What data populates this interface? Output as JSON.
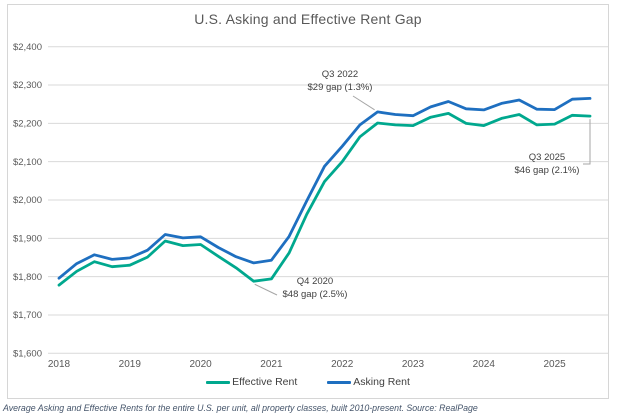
{
  "title": "U.S. Asking and Effective Rent Gap",
  "footnote": "Average Asking and Effective Rents for the entire U.S. per unit, all property classes, built 2010-present. Source: RealPage",
  "colors": {
    "effective_rent": "#00a88e",
    "asking_rent": "#1e6fc0",
    "gridline": "#d9d9d9",
    "axis_text": "#595959",
    "annotation_text": "#404040",
    "leader_line": "#a6a6a6"
  },
  "chart_data": {
    "type": "line",
    "title": "U.S. Asking and Effective Rent Gap",
    "categories": [
      "Q1 2018",
      "Q2 2018",
      "Q3 2018",
      "Q4 2018",
      "Q1 2019",
      "Q2 2019",
      "Q3 2019",
      "Q4 2019",
      "Q1 2020",
      "Q2 2020",
      "Q3 2020",
      "Q4 2020",
      "Q1 2021",
      "Q2 2021",
      "Q3 2021",
      "Q4 2021",
      "Q1 2022",
      "Q2 2022",
      "Q3 2022",
      "Q4 2022",
      "Q1 2023",
      "Q2 2023",
      "Q3 2023",
      "Q4 2023",
      "Q1 2024",
      "Q2 2024",
      "Q3 2024",
      "Q4 2024",
      "Q1 2025",
      "Q2 2025",
      "Q3 2025"
    ],
    "series": [
      {
        "name": "Effective Rent",
        "color": "#00a88e",
        "values": [
          1778,
          1814,
          1839,
          1826,
          1830,
          1851,
          1893,
          1881,
          1884,
          1853,
          1823,
          1788,
          1794,
          1862,
          1963,
          2048,
          2100,
          2165,
          2201,
          2196,
          2194,
          2216,
          2226,
          2200,
          2194,
          2213,
          2223,
          2196,
          2198,
          2221,
          2219
        ]
      },
      {
        "name": "Asking Rent",
        "color": "#1e6fc0",
        "values": [
          1796,
          1834,
          1857,
          1845,
          1849,
          1869,
          1910,
          1901,
          1904,
          1876,
          1852,
          1836,
          1843,
          1905,
          1998,
          2088,
          2140,
          2196,
          2230,
          2223,
          2220,
          2243,
          2257,
          2238,
          2235,
          2252,
          2261,
          2237,
          2236,
          2263,
          2265
        ]
      }
    ],
    "ylim": [
      1600,
      2400
    ],
    "y_tick_step": 100,
    "y_tick_labels_top_down": [
      "$2,400",
      "$2,300",
      "$2,200",
      "$2,100",
      "$2,000",
      "$1,900",
      "$1,800",
      "$1,700",
      "$1,600"
    ],
    "x_year_labels": [
      "2018",
      "2019",
      "2020",
      "2021",
      "2022",
      "2023",
      "2024",
      "2025"
    ],
    "grid": "horizontal",
    "legend_position": "bottom",
    "annotations": [
      {
        "target": "Q3 2022",
        "line1": "Q3 2022",
        "line2": "$29 gap (1.3%)"
      },
      {
        "target": "Q4 2020",
        "line1": "Q4 2020",
        "line2": "$48 gap (2.5%)"
      },
      {
        "target": "Q3 2025",
        "line1": "Q3 2025",
        "line2": "$46 gap (2.1%)"
      }
    ]
  }
}
